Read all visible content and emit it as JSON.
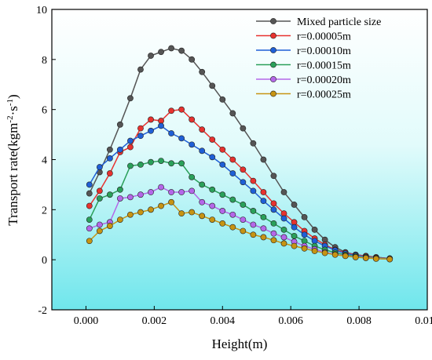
{
  "chart_data": {
    "type": "line",
    "title": "",
    "xlabel": "Height(m)",
    "ylabel_main": "Transport rate(kgm",
    "ylabel_sup1": "-2",
    "ylabel_mid": "·s",
    "ylabel_sup2": "-1",
    "ylabel_end": ")",
    "xlim": [
      -0.001,
      0.01
    ],
    "ylim": [
      -2,
      10
    ],
    "xticks": [
      0.0,
      0.002,
      0.004,
      0.006,
      0.008,
      0.01
    ],
    "xtick_labels": [
      "0.000",
      "0.002",
      "0.004",
      "0.006",
      "0.008",
      "0.010"
    ],
    "yticks": [
      -2,
      0,
      2,
      4,
      6,
      8,
      10
    ],
    "ytick_labels": [
      "-2",
      "0",
      "2",
      "4",
      "6",
      "8",
      "10"
    ],
    "grid": false,
    "legend_position": "top-right",
    "background": "gradient cyan",
    "x": [
      0.0001,
      0.0004,
      0.0007,
      0.001,
      0.0013,
      0.0016,
      0.0019,
      0.0022,
      0.0025,
      0.0028,
      0.0031,
      0.0034,
      0.0037,
      0.004,
      0.0043,
      0.0046,
      0.0049,
      0.0052,
      0.0055,
      0.0058,
      0.0061,
      0.0064,
      0.0067,
      0.007,
      0.0073,
      0.0076,
      0.0079,
      0.0082,
      0.0085,
      0.0089
    ],
    "series": [
      {
        "name": "Mixed particle size",
        "color": "#555555",
        "values": [
          2.65,
          3.5,
          4.4,
          5.4,
          6.45,
          7.6,
          8.15,
          8.3,
          8.45,
          8.35,
          8.0,
          7.5,
          6.95,
          6.4,
          5.85,
          5.25,
          4.65,
          4.0,
          3.35,
          2.7,
          2.2,
          1.7,
          1.2,
          0.8,
          0.5,
          0.3,
          0.2,
          0.15,
          0.1,
          0.05
        ]
      },
      {
        "name": "r=0.00005m",
        "color": "#e8322f",
        "values": [
          2.15,
          2.75,
          3.45,
          4.3,
          4.5,
          5.25,
          5.6,
          5.55,
          5.95,
          6.0,
          5.6,
          5.2,
          4.8,
          4.4,
          4.0,
          3.6,
          3.15,
          2.7,
          2.25,
          1.85,
          1.5,
          1.15,
          0.85,
          0.6,
          0.4,
          0.28,
          0.2,
          0.15,
          0.1,
          0.05
        ]
      },
      {
        "name": "r=0.00010m",
        "color": "#1f5fd6",
        "values": [
          3.0,
          3.7,
          4.05,
          4.4,
          4.75,
          4.95,
          5.15,
          5.35,
          5.05,
          4.85,
          4.6,
          4.35,
          4.1,
          3.8,
          3.45,
          3.1,
          2.75,
          2.35,
          2.0,
          1.65,
          1.3,
          1.0,
          0.75,
          0.55,
          0.38,
          0.25,
          0.18,
          0.12,
          0.08,
          0.04
        ]
      },
      {
        "name": "r=0.00015m",
        "color": "#2aa05a",
        "values": [
          1.6,
          2.45,
          2.6,
          2.8,
          3.75,
          3.8,
          3.9,
          3.95,
          3.85,
          3.85,
          3.3,
          3.0,
          2.8,
          2.6,
          2.4,
          2.2,
          1.95,
          1.7,
          1.45,
          1.2,
          0.95,
          0.75,
          0.55,
          0.4,
          0.28,
          0.2,
          0.14,
          0.1,
          0.07,
          0.03
        ]
      },
      {
        "name": "r=0.00020m",
        "color": "#b467e8",
        "values": [
          1.25,
          1.4,
          1.5,
          2.45,
          2.5,
          2.6,
          2.7,
          2.9,
          2.7,
          2.7,
          2.75,
          2.3,
          2.15,
          1.95,
          1.8,
          1.6,
          1.4,
          1.25,
          1.05,
          0.9,
          0.72,
          0.55,
          0.42,
          0.3,
          0.22,
          0.16,
          0.11,
          0.08,
          0.05,
          0.02
        ]
      },
      {
        "name": "r=0.00025m",
        "color": "#c79413",
        "values": [
          0.75,
          1.15,
          1.35,
          1.6,
          1.8,
          1.9,
          2.0,
          2.15,
          2.3,
          1.85,
          1.9,
          1.75,
          1.6,
          1.45,
          1.3,
          1.15,
          1.0,
          0.9,
          0.78,
          0.65,
          0.55,
          0.45,
          0.35,
          0.27,
          0.2,
          0.15,
          0.1,
          0.07,
          0.04,
          0.02
        ]
      }
    ]
  }
}
